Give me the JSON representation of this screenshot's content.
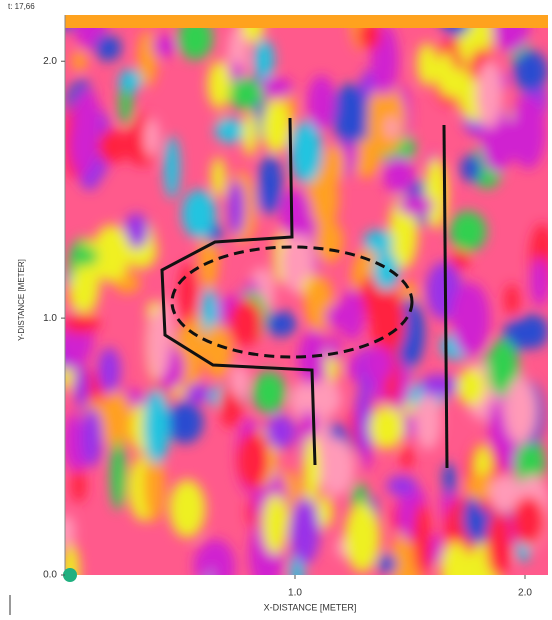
{
  "chart_data": {
    "type": "heatmap",
    "title": "t: 17,66",
    "xlabel": "X-DISTANCE [METER]",
    "ylabel": "Y-DISTANCE [METER]",
    "xlim": [
      0,
      2.1
    ],
    "ylim": [
      0,
      2.18
    ],
    "xticks": [
      {
        "value": 1,
        "label": "1.0"
      },
      {
        "value": 2,
        "label": "2.0"
      }
    ],
    "yticks": [
      {
        "value": 0,
        "label": "0.0"
      },
      {
        "value": 1,
        "label": "1.0"
      },
      {
        "value": 2,
        "label": "2.0"
      }
    ]
  }
}
